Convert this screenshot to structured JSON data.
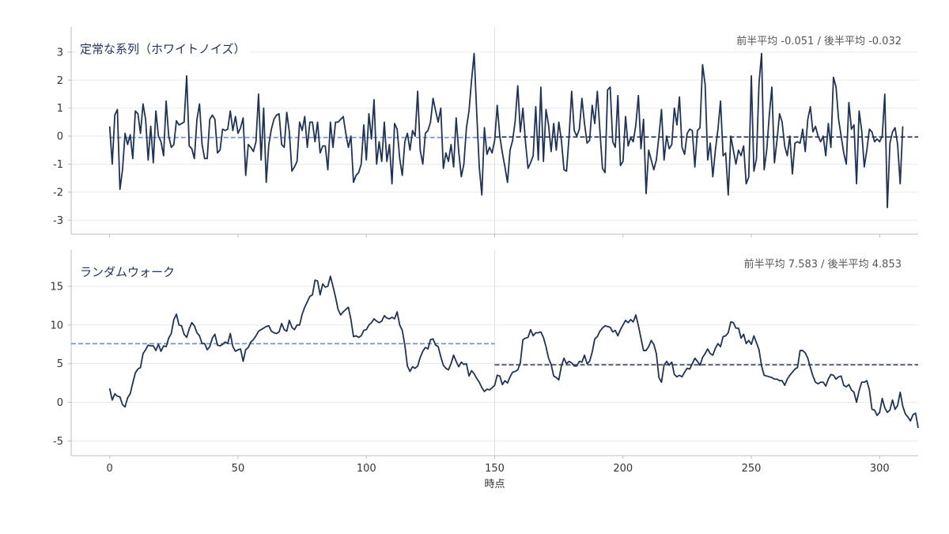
{
  "chart_data": [
    {
      "type": "line",
      "title": "定常な系列（ホワイトノイズ）",
      "annotation": "前半平均 -0.051 / 後半平均 -0.032",
      "xlabel": "",
      "ylabel": "",
      "xlim": [
        -15,
        315
      ],
      "ylim": [
        -3.5,
        3.9
      ],
      "yticks": [
        -3,
        -2,
        -1,
        0,
        1,
        2,
        3
      ],
      "xticks": [
        0,
        50,
        100,
        150,
        200,
        250,
        300
      ],
      "split": 150,
      "means": [
        {
          "label": "前半平均",
          "value": -0.051,
          "from": 0,
          "to": 150,
          "color": "#6f8fc9"
        },
        {
          "label": "後半平均",
          "value": -0.032,
          "from": 150,
          "to": 315,
          "color": "#2b3852"
        }
      ],
      "series": [
        {
          "color": "#1f3358",
          "x_start": 0,
          "values": [
            0.35,
            -1.0,
            0.75,
            0.95,
            -1.9,
            -1.2,
            0.1,
            -0.3,
            0.05,
            -0.8,
            0.9,
            0.8,
            0.1,
            1.15,
            0.6,
            -0.85,
            0.35,
            -0.95,
            0.9,
            0.0,
            -0.2,
            -0.7,
            1.25,
            0.0,
            -0.4,
            -0.3,
            0.55,
            0.4,
            0.45,
            0.5,
            2.15,
            -0.35,
            -0.45,
            -0.8,
            0.6,
            1.15,
            -0.3,
            -0.8,
            -0.8,
            0.6,
            0.75,
            0.6,
            -0.6,
            -0.5,
            0.25,
            0.2,
            0.25,
            0.9,
            0.2,
            0.7,
            0.1,
            0.3,
            0.65,
            -1.4,
            -0.3,
            -0.4,
            -0.55,
            -0.2,
            1.5,
            -0.85,
            1.0,
            -1.65,
            -0.3,
            0.25,
            0.6,
            0.75,
            0.8,
            -0.3,
            -0.4,
            0.85,
            0.15,
            -1.25,
            -1.1,
            -0.9,
            0.5,
            0.2,
            0.7,
            -0.4,
            0.5,
            0.5,
            -0.2,
            0.5,
            -0.6,
            -0.35,
            -0.35,
            -1.2,
            0.5,
            -0.4,
            0.5,
            0.5,
            0.6,
            0.7,
            0.1,
            -0.4,
            0.0,
            -1.65,
            -1.4,
            -1.3,
            -1.0,
            0.4,
            -0.85,
            0.8,
            -0.1,
            1.3,
            -1.0,
            -0.2,
            -0.9,
            0.5,
            -0.9,
            -0.3,
            -1.7,
            0.45,
            0.25,
            -0.8,
            -1.4,
            -0.2,
            0.1,
            -0.5,
            0.2,
            0.0,
            1.6,
            -0.5,
            -1.0,
            0.1,
            0.2,
            0.5,
            1.35,
            0.9,
            0.5,
            1.0,
            -1.15,
            -0.6,
            -0.9,
            -0.3,
            -1.1,
            0.65,
            -0.55,
            -1.45,
            -1.0,
            0.3,
            0.9,
            2.0,
            2.95,
            0.85,
            -1.1,
            -2.1,
            0.3,
            -0.65,
            -0.4,
            -0.6,
            -0.15,
            1.1,
            0.0,
            -0.6,
            -1.1,
            -1.65,
            -0.5,
            -0.15,
            0.55,
            1.8,
            0.15,
            1.0,
            -0.2,
            -1.15,
            -0.95,
            -0.7,
            1.05,
            -0.85,
            1.75,
            -0.9,
            0.95,
            0.4,
            -0.55,
            0.45,
            -0.5,
            0.5,
            -0.15,
            -1.2,
            -1.25,
            0.0,
            1.6,
            0.2,
            0.0,
            0.25,
            1.35,
            0.45,
            -0.25,
            -0.15,
            1.1,
            0.45,
            1.6,
            0.2,
            -1.15,
            -1.3,
            1.65,
            1.75,
            -0.2,
            -0.4,
            1.45,
            -1.05,
            -0.9,
            0.7,
            -0.35,
            -0.05,
            -0.2,
            0.4,
            1.45,
            -0.45,
            0.6,
            -2.05,
            -0.5,
            -0.85,
            -1.2,
            -0.85,
            0.0,
            0.95,
            -0.85,
            0.0,
            -0.45,
            -0.3,
            1.0,
            0.4,
            1.4,
            -0.4,
            -0.65,
            0.1,
            0.25,
            0.2,
            -1.1,
            0.2,
            0.3,
            2.55,
            1.85,
            -0.85,
            -0.25,
            -1.45,
            -0.5,
            0.25,
            1.25,
            -0.7,
            -0.6,
            -2.1,
            0.0,
            -0.5,
            -1.0,
            -0.5,
            -0.7,
            -0.35,
            -1.7,
            -1.45,
            2.15,
            -1.25,
            -0.8,
            1.9,
            2.95,
            -1.2,
            -0.5,
            0.75,
            1.75,
            -0.95,
            -0.15,
            0.8,
            0.5,
            -0.35,
            -0.7,
            0.0,
            -1.35,
            -0.25,
            -0.2,
            -0.25,
            0.25,
            -0.55,
            0.6,
            1.05,
            0.15,
            0.35,
            0.0,
            -0.2,
            0.0,
            -0.7,
            0.45,
            -0.4,
            2.1,
            1.75,
            0.6,
            0.0,
            -0.6,
            -1.0,
            1.2,
            0.25,
            0.4,
            -1.7,
            0.9,
            0.2,
            -1.1,
            -0.5,
            0.25,
            0.15,
            -0.2,
            -0.1,
            -0.2,
            0.0,
            1.5,
            -2.55,
            -0.25,
            0.15,
            0.3,
            -0.3,
            -1.7,
            0.35
          ]
        }
      ]
    },
    {
      "type": "line",
      "title": "ランダムウォーク",
      "annotation": "前半平均 7.583 / 後半平均 4.853",
      "xlabel": "時点",
      "ylabel": "",
      "xlim": [
        -15,
        315
      ],
      "ylim": [
        -6.9,
        19.7
      ],
      "yticks": [
        -5,
        0,
        5,
        10,
        15
      ],
      "xticks": [
        0,
        50,
        100,
        150,
        200,
        250,
        300
      ],
      "split": 150,
      "means": [
        {
          "label": "前半平均",
          "value": 7.583,
          "from": -15,
          "to": 150,
          "color": "#6f8fc9"
        },
        {
          "label": "後半平均",
          "value": 4.853,
          "from": 150,
          "to": 315,
          "color": "#2b3852"
        }
      ],
      "series": [
        {
          "color": "#1f3358",
          "x_start": 0,
          "values": [
            1.8,
            0.3,
            1.1,
            0.8,
            0.7,
            -0.3,
            -0.6,
            0.6,
            1.1,
            2.5,
            3.8,
            4.3,
            4.5,
            6.3,
            6.8,
            7.4,
            7.3,
            7.3,
            6.7,
            7.5,
            6.6,
            7.3,
            7.2,
            8.3,
            8.9,
            10.7,
            11.4,
            10.0,
            9.9,
            8.8,
            8.4,
            9.5,
            10.3,
            9.9,
            9.0,
            8.6,
            7.6,
            7.6,
            6.8,
            7.2,
            8.3,
            8.8,
            7.4,
            7.3,
            7.5,
            7.8,
            7.6,
            8.9,
            7.2,
            6.6,
            6.8,
            6.9,
            5.3,
            6.8,
            7.1,
            7.8,
            8.1,
            8.6,
            9.2,
            9.4,
            9.6,
            9.8,
            9.9,
            9.2,
            9.0,
            8.9,
            9.1,
            10.2,
            9.4,
            9.2,
            10.6,
            9.7,
            9.4,
            10.0,
            10.0,
            11.4,
            12.3,
            13.0,
            13.7,
            13.9,
            15.8,
            15.7,
            13.9,
            15.3,
            14.9,
            15.0,
            16.3,
            15.0,
            13.6,
            12.0,
            11.3,
            11.7,
            12.0,
            12.3,
            10.7,
            8.5,
            8.6,
            8.4,
            8.6,
            9.3,
            9.4,
            10.0,
            10.3,
            10.8,
            10.5,
            10.3,
            10.5,
            11.2,
            10.9,
            10.8,
            11.0,
            10.8,
            11.7,
            10.0,
            9.3,
            7.4,
            4.7,
            4.0,
            4.6,
            4.4,
            4.7,
            5.8,
            6.6,
            7.1,
            6.9,
            8.1,
            8.2,
            7.4,
            7.2,
            5.9,
            4.8,
            4.4,
            4.2,
            5.0,
            6.1,
            5.3,
            4.6,
            5.2,
            4.9,
            5.0,
            3.4,
            4.1,
            3.7,
            3.1,
            2.6,
            1.9,
            1.4,
            1.7,
            1.6,
            1.9,
            2.2,
            3.5,
            3.4,
            2.3,
            2.8,
            2.5,
            3.3,
            3.9,
            4.0,
            4.2,
            5.1,
            8.1,
            8.3,
            8.4,
            9.4,
            8.6,
            9.0,
            9.0,
            9.1,
            8.4,
            7.2,
            5.7,
            4.9,
            3.4,
            3.2,
            2.9,
            4.7,
            5.7,
            5.0,
            5.3,
            5.1,
            4.7,
            4.7,
            5.3,
            5.2,
            6.1,
            5.0,
            5.3,
            6.5,
            8.2,
            8.5,
            9.2,
            9.6,
            9.9,
            9.8,
            9.7,
            9.1,
            9.3,
            8.6,
            9.4,
            10.0,
            10.6,
            10.3,
            10.7,
            10.4,
            11.3,
            9.9,
            8.3,
            6.7,
            6.7,
            7.2,
            8.0,
            7.5,
            6.3,
            3.2,
            2.6,
            4.8,
            5.3,
            4.8,
            5.2,
            3.6,
            3.3,
            3.5,
            3.3,
            3.9,
            4.4,
            4.3,
            5.0,
            5.7,
            5.3,
            4.8,
            5.8,
            6.3,
            6.9,
            6.3,
            6.1,
            7.0,
            7.6,
            7.2,
            8.5,
            8.6,
            9.0,
            10.4,
            10.3,
            9.6,
            9.6,
            8.3,
            8.8,
            7.6,
            8.0,
            7.5,
            8.6,
            7.7,
            6.8,
            4.7,
            3.5,
            3.4,
            3.3,
            3.2,
            3.0,
            3.0,
            2.8,
            2.8,
            2.2,
            3.0,
            3.5,
            3.9,
            4.3,
            4.5,
            6.7,
            6.7,
            6.4,
            5.7,
            4.5,
            3.4,
            2.6,
            2.4,
            2.6,
            2.6,
            2.1,
            3.0,
            3.6,
            3.5,
            3.0,
            3.3,
            3.4,
            2.2,
            2.0,
            2.3,
            1.6,
            1.3,
            0.0,
            1.5,
            2.6,
            2.6,
            2.8,
            1.6,
            -0.9,
            -1.0,
            -1.7,
            -1.3,
            0.5,
            -0.7,
            -1.3,
            -1.0,
            0.3,
            -0.9,
            -0.4,
            1.3,
            -0.5,
            -1.5,
            -1.9,
            -2.4,
            -1.6,
            -1.4,
            -3.3
          ]
        }
      ]
    }
  ]
}
